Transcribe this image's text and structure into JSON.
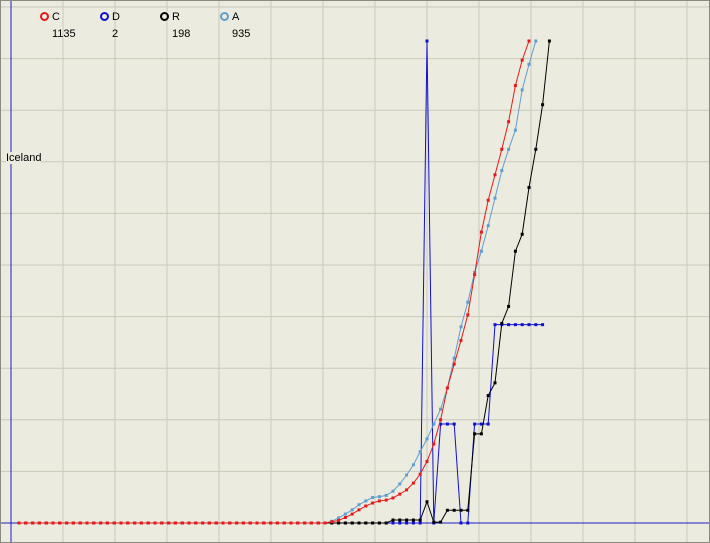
{
  "chart_data": {
    "type": "line",
    "region_label": "Iceland",
    "x": [
      1,
      2,
      3,
      4,
      5,
      6,
      7,
      8,
      9,
      10,
      11,
      12,
      13,
      14,
      15,
      16,
      17,
      18,
      19,
      20,
      21,
      22,
      23,
      24,
      25,
      26,
      27,
      28,
      29,
      30,
      31,
      32,
      33,
      34,
      35,
      36,
      37,
      38,
      39,
      40,
      41,
      42,
      43,
      44,
      45,
      46,
      47,
      48,
      49,
      50,
      51,
      52,
      53,
      54,
      55,
      56,
      57,
      58,
      59,
      60,
      61,
      62,
      63,
      64,
      65,
      66,
      67,
      68,
      69,
      70,
      71,
      72,
      73,
      74,
      75,
      76,
      77,
      78,
      79,
      80,
      81,
      82,
      83
    ],
    "ylim": [
      0,
      1250
    ],
    "series": [
      {
        "key": "C",
        "name": "C",
        "legend_value": "1135",
        "color": "#e31a1a",
        "values": [
          0,
          0,
          0,
          0,
          0,
          0,
          0,
          0,
          0,
          0,
          0,
          0,
          0,
          0,
          0,
          0,
          0,
          0,
          0,
          0,
          0,
          0,
          0,
          0,
          0,
          0,
          0,
          0,
          0,
          0,
          0,
          0,
          0,
          0,
          0,
          0,
          0,
          0,
          0,
          0,
          0,
          0,
          0,
          0,
          0,
          0,
          3,
          6,
          13,
          21,
          31,
          40,
          47,
          52,
          54,
          59,
          68,
          78,
          94,
          115,
          145,
          186,
          243,
          318,
          374,
          430,
          490,
          585,
          685,
          760,
          820,
          880,
          945,
          1030,
          1090,
          1135,
          null,
          null,
          null,
          null,
          null,
          null,
          null
        ]
      },
      {
        "key": "D",
        "name": "D",
        "legend_value": "2",
        "color": "#1010d0",
        "values": [
          0,
          0,
          0,
          0,
          0,
          0,
          0,
          0,
          0,
          0,
          0,
          0,
          0,
          0,
          0,
          0,
          0,
          0,
          0,
          0,
          0,
          0,
          0,
          0,
          0,
          0,
          0,
          0,
          0,
          0,
          0,
          0,
          0,
          0,
          0,
          0,
          0,
          0,
          0,
          0,
          0,
          0,
          0,
          0,
          0,
          0,
          0,
          0,
          0,
          0,
          0,
          0,
          0,
          0,
          0,
          0,
          0,
          0,
          0,
          0,
          1135,
          0,
          233,
          233,
          233,
          0,
          0,
          233,
          233,
          233,
          467,
          467,
          467,
          467,
          467,
          467,
          467,
          467,
          null,
          null,
          null,
          null,
          null
        ]
      },
      {
        "key": "R",
        "name": "R",
        "legend_value": "198",
        "color": "#000000",
        "values": [
          0,
          0,
          0,
          0,
          0,
          0,
          0,
          0,
          0,
          0,
          0,
          0,
          0,
          0,
          0,
          0,
          0,
          0,
          0,
          0,
          0,
          0,
          0,
          0,
          0,
          0,
          0,
          0,
          0,
          0,
          0,
          0,
          0,
          0,
          0,
          0,
          0,
          0,
          0,
          0,
          0,
          0,
          0,
          0,
          0,
          0,
          0,
          0,
          0,
          0,
          0,
          0,
          0,
          0,
          0,
          7,
          7,
          7,
          7,
          7,
          50,
          2,
          2,
          30,
          30,
          30,
          30,
          210,
          210,
          300,
          330,
          470,
          510,
          640,
          680,
          790,
          880,
          985,
          1135,
          null,
          null,
          null,
          null
        ]
      },
      {
        "key": "A",
        "name": "A",
        "legend_value": "935",
        "color": "#5f9ed0",
        "values": [
          0,
          0,
          0,
          0,
          0,
          0,
          0,
          0,
          0,
          0,
          0,
          0,
          0,
          0,
          0,
          0,
          0,
          0,
          0,
          0,
          0,
          0,
          0,
          0,
          0,
          0,
          0,
          0,
          0,
          0,
          0,
          0,
          0,
          0,
          0,
          0,
          0,
          0,
          0,
          0,
          0,
          0,
          0,
          0,
          0,
          0,
          4,
          12,
          21,
          31,
          43,
          52,
          60,
          62,
          65,
          75,
          92,
          113,
          137,
          168,
          198,
          233,
          268,
          318,
          388,
          462,
          520,
          590,
          640,
          700,
          765,
          830,
          880,
          925,
          1020,
          1080,
          1135,
          null,
          null,
          null,
          null,
          null,
          null
        ]
      }
    ]
  }
}
